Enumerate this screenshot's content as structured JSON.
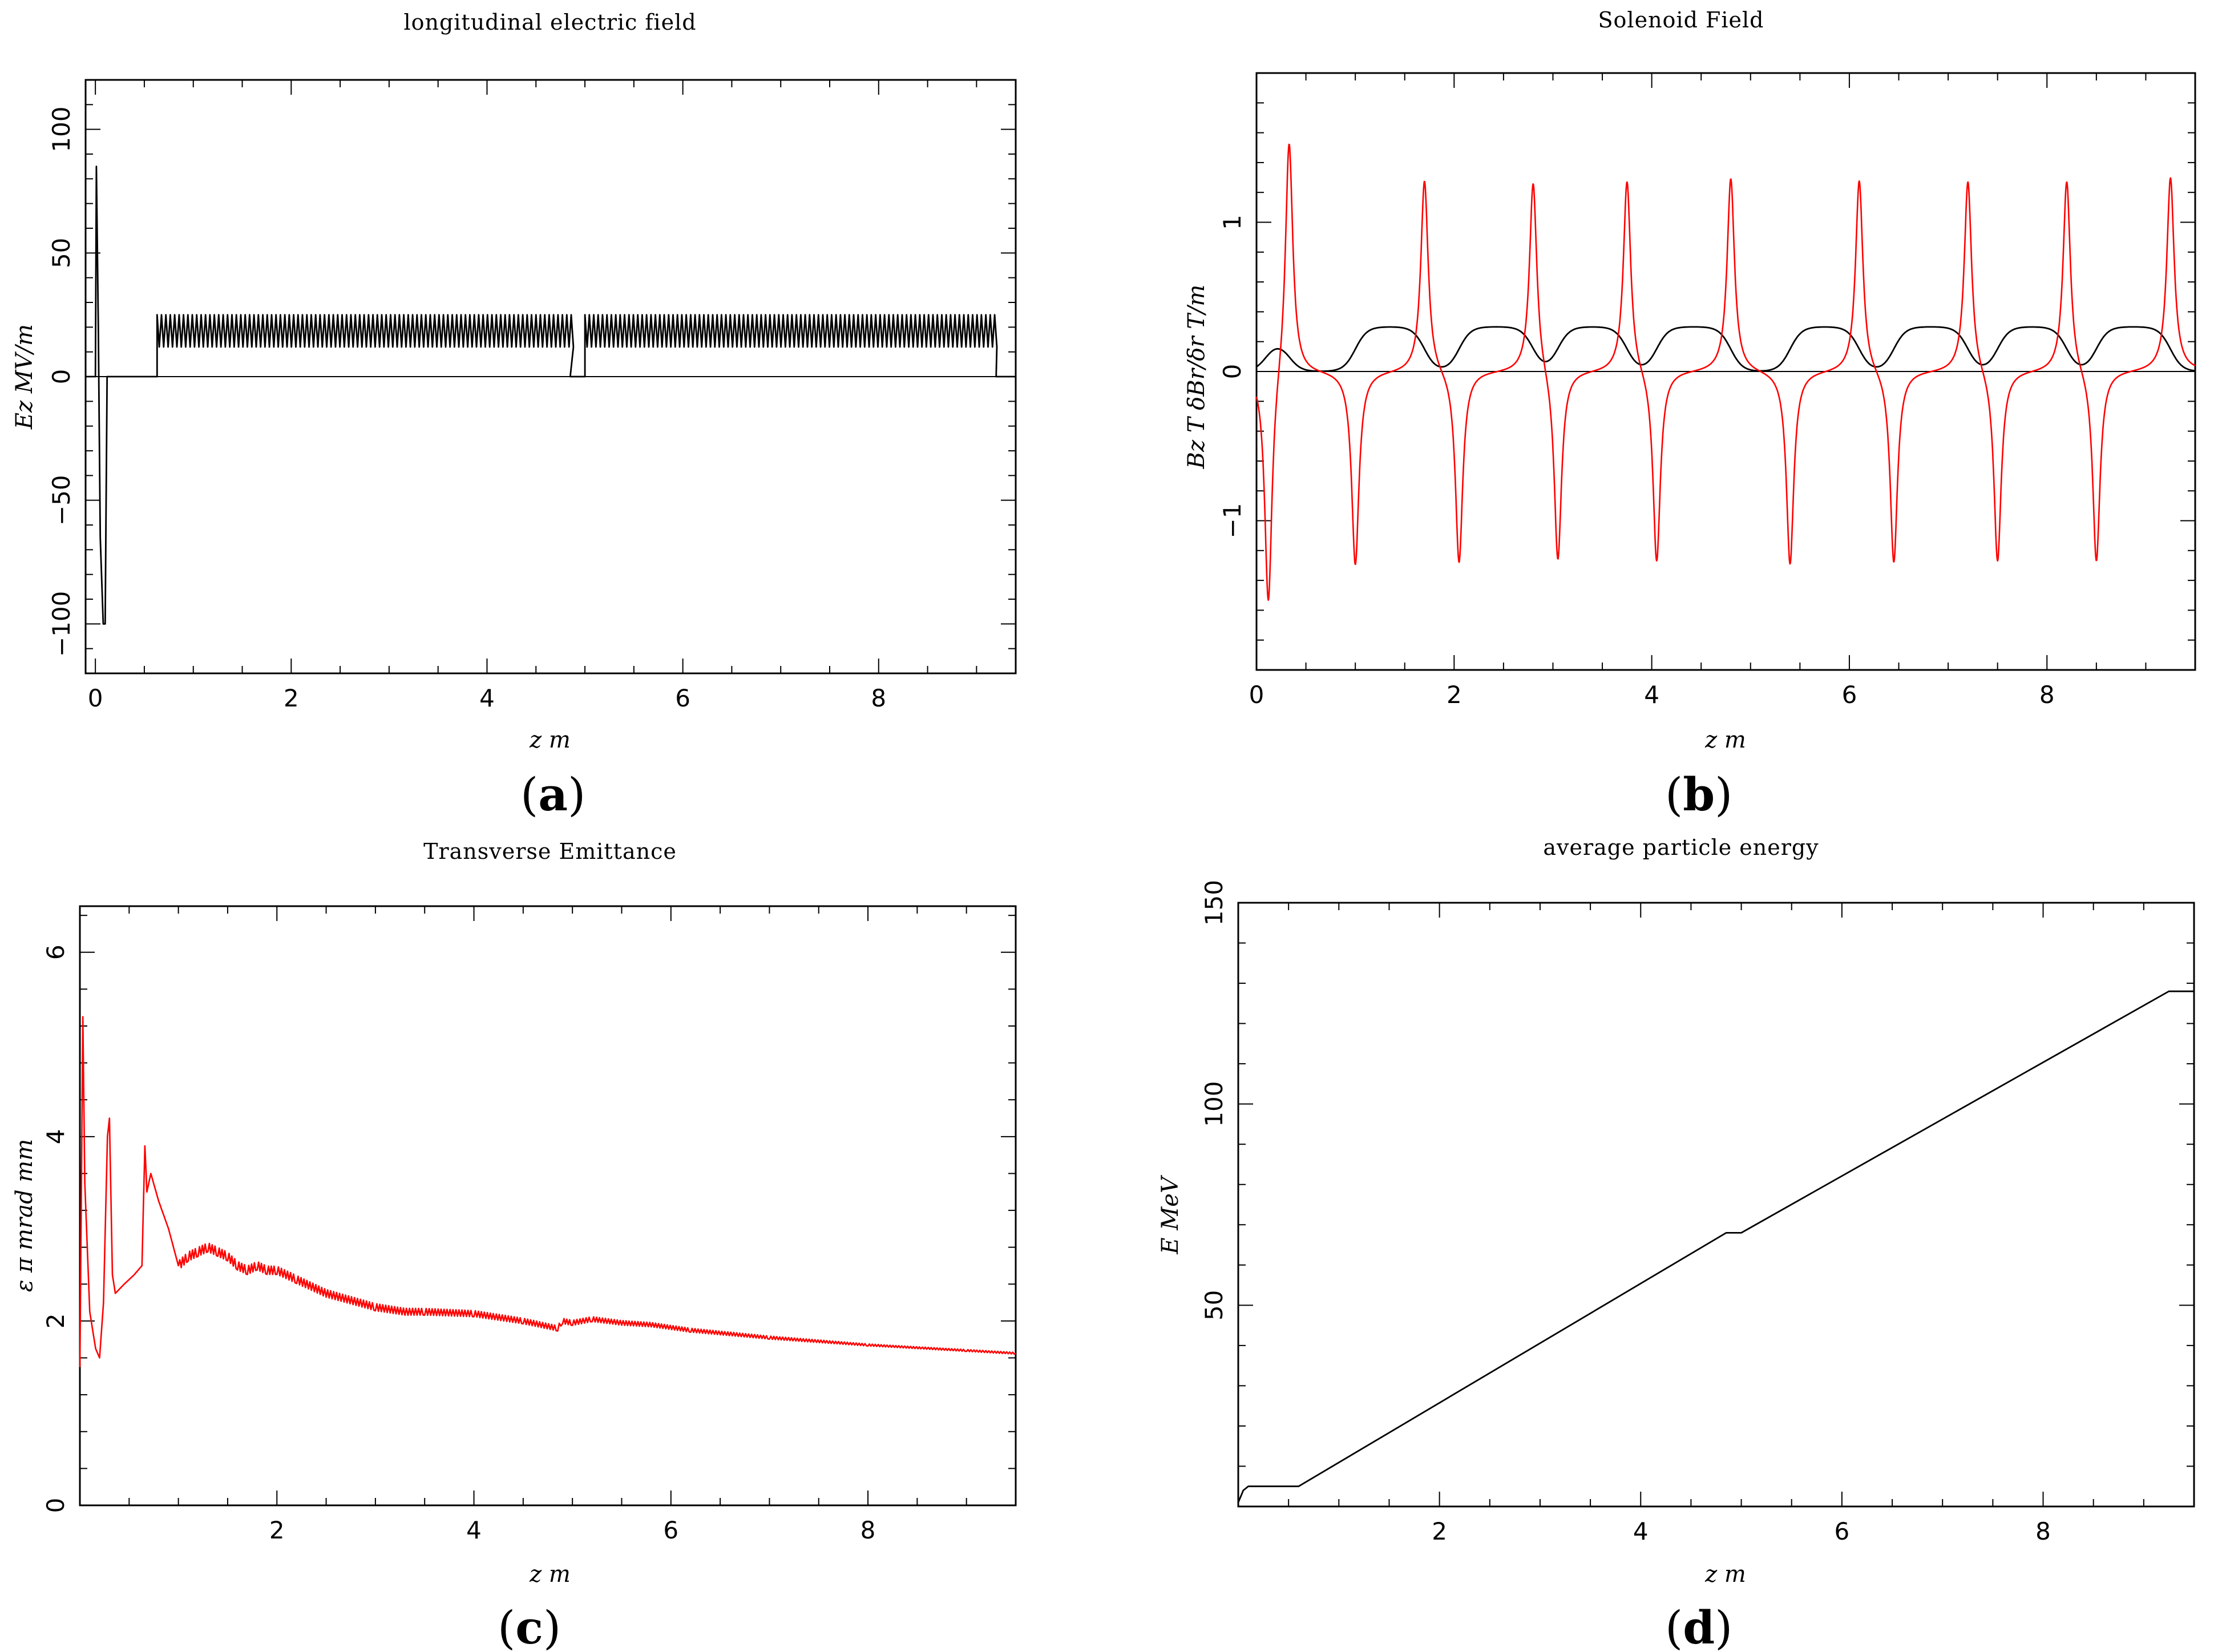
{
  "chart_data": [
    {
      "id": "a",
      "panel_label": "a",
      "type": "line",
      "title": "longitudinal electric field",
      "xlabel": "z m",
      "ylabel": "Ez MV/m",
      "xlim": [
        -0.1,
        9.4
      ],
      "ylim": [
        -120,
        120
      ],
      "xticks": [
        0,
        2,
        4,
        6,
        8
      ],
      "yticks": [
        -100,
        -50,
        0,
        50,
        100
      ],
      "yticklabels": [
        "−100",
        "−50",
        "0",
        "50",
        "100"
      ],
      "series": [
        {
          "name": "Ez",
          "color": "#000000",
          "segments": [
            {
              "kind": "line",
              "x": [
                -0.1,
                0,
                0.01,
                0.03,
                0.05,
                0.08,
                0.1,
                0.12,
                0.6
              ],
              "y": [
                0,
                0,
                85,
                20,
                -65,
                -100,
                -100,
                0,
                0
              ]
            },
            {
              "kind": "oscillation",
              "x_start": 0.63,
              "x_end": 4.85,
              "y_min": 12,
              "y_max": 25,
              "period": 0.045
            },
            {
              "kind": "line",
              "x": [
                4.85,
                5.0
              ],
              "y": [
                0,
                0
              ]
            },
            {
              "kind": "oscillation",
              "x_start": 5.0,
              "x_end": 9.2,
              "y_min": 12,
              "y_max": 25,
              "period": 0.045
            },
            {
              "kind": "line",
              "x": [
                9.2,
                9.4
              ],
              "y": [
                0,
                0
              ]
            }
          ]
        }
      ]
    },
    {
      "id": "b",
      "panel_label": "b",
      "type": "line",
      "title": "Solenoid Field",
      "xlabel": "z m",
      "ylabel": "Bz T   δBr/δr T/m",
      "xlim": [
        0,
        9.5
      ],
      "ylim": [
        -2,
        2
      ],
      "xticks": [
        0,
        2,
        4,
        6,
        8
      ],
      "yticks": [
        -1,
        0,
        1
      ],
      "yticklabels": [
        "−1",
        "0",
        "1"
      ],
      "series": [
        {
          "name": "Bz",
          "color": "#000000",
          "plateaus": [
            {
              "start": 0.1,
              "end": 0.33,
              "value": 0.2
            },
            {
              "start": 1.0,
              "end": 1.7,
              "value": 0.3
            },
            {
              "start": 2.05,
              "end": 2.8,
              "value": 0.3
            },
            {
              "start": 3.05,
              "end": 3.75,
              "value": 0.3
            },
            {
              "start": 4.05,
              "end": 4.8,
              "value": 0.3
            },
            {
              "start": 5.4,
              "end": 6.1,
              "value": 0.3
            },
            {
              "start": 6.45,
              "end": 7.2,
              "value": 0.3
            },
            {
              "start": 7.5,
              "end": 8.2,
              "value": 0.3
            },
            {
              "start": 8.5,
              "end": 9.25,
              "value": 0.3
            }
          ]
        },
        {
          "name": "δBr/δr",
          "color": "#ff0000",
          "peaks": [
            {
              "x": 0.12,
              "y": -1.6
            },
            {
              "x": 0.33,
              "y": 1.6
            },
            {
              "x": 1.0,
              "y": -1.3
            },
            {
              "x": 1.7,
              "y": 1.3
            },
            {
              "x": 2.05,
              "y": -1.3
            },
            {
              "x": 2.8,
              "y": 1.3
            },
            {
              "x": 3.05,
              "y": -1.3
            },
            {
              "x": 3.75,
              "y": 1.3
            },
            {
              "x": 4.05,
              "y": -1.3
            },
            {
              "x": 4.8,
              "y": 1.3
            },
            {
              "x": 5.4,
              "y": -1.3
            },
            {
              "x": 6.1,
              "y": 1.3
            },
            {
              "x": 6.45,
              "y": -1.3
            },
            {
              "x": 7.2,
              "y": 1.3
            },
            {
              "x": 7.5,
              "y": -1.3
            },
            {
              "x": 8.2,
              "y": 1.3
            },
            {
              "x": 8.5,
              "y": -1.3
            },
            {
              "x": 9.25,
              "y": 1.3
            }
          ]
        }
      ]
    },
    {
      "id": "c",
      "panel_label": "c",
      "type": "line",
      "title": "Transverse Emittance",
      "xlabel": "z m",
      "ylabel": "ε π mrad mm",
      "xlim": [
        0,
        9.5
      ],
      "ylim": [
        0,
        6.5
      ],
      "xticks": [
        2,
        4,
        6,
        8
      ],
      "yticks": [
        0,
        2,
        4,
        6
      ],
      "yticklabels": [
        "0",
        "2",
        "4",
        "6"
      ],
      "series": [
        {
          "name": "emittance",
          "color": "#ff0000",
          "x": [
            0,
            0.03,
            0.05,
            0.1,
            0.16,
            0.2,
            0.24,
            0.28,
            0.3,
            0.33,
            0.36,
            0.45,
            0.55,
            0.63,
            0.66,
            0.68,
            0.72,
            0.8,
            0.9,
            1.0,
            1.1,
            1.2,
            1.3,
            1.4,
            1.5,
            1.6,
            1.7,
            1.8,
            1.9,
            2.0,
            2.2,
            2.5,
            3.0,
            3.3,
            3.5,
            4.0,
            4.5,
            4.85,
            4.9,
            5.0,
            5.2,
            5.5,
            5.8,
            6.2,
            7.0,
            8.0,
            9.0,
            9.5
          ],
          "y": [
            1.5,
            5.3,
            3.5,
            2.1,
            1.7,
            1.6,
            2.2,
            4.0,
            4.2,
            2.5,
            2.3,
            2.4,
            2.5,
            2.6,
            3.9,
            3.4,
            3.6,
            3.3,
            3.0,
            2.6,
            2.7,
            2.75,
            2.8,
            2.75,
            2.7,
            2.6,
            2.55,
            2.6,
            2.55,
            2.55,
            2.45,
            2.3,
            2.15,
            2.1,
            2.1,
            2.08,
            2.0,
            1.92,
            2.0,
            1.98,
            2.02,
            1.98,
            1.96,
            1.9,
            1.82,
            1.74,
            1.68,
            1.65
          ],
          "jitter": 0.05
        }
      ]
    },
    {
      "id": "d",
      "panel_label": "d",
      "type": "line",
      "title": "average particle energy",
      "xlabel": "z m",
      "ylabel": "E MeV",
      "xlim": [
        0,
        9.5
      ],
      "ylim": [
        0,
        150
      ],
      "xticks": [
        2,
        4,
        6,
        8
      ],
      "yticks": [
        50,
        100,
        150
      ],
      "yticklabels": [
        "50",
        "100",
        "150"
      ],
      "series": [
        {
          "name": "E",
          "color": "#000000",
          "x": [
            0,
            0.05,
            0.1,
            0.6,
            4.85,
            5.0,
            9.25,
            9.5
          ],
          "y": [
            1,
            4,
            5,
            5,
            68,
            68,
            128,
            128
          ]
        }
      ]
    }
  ]
}
